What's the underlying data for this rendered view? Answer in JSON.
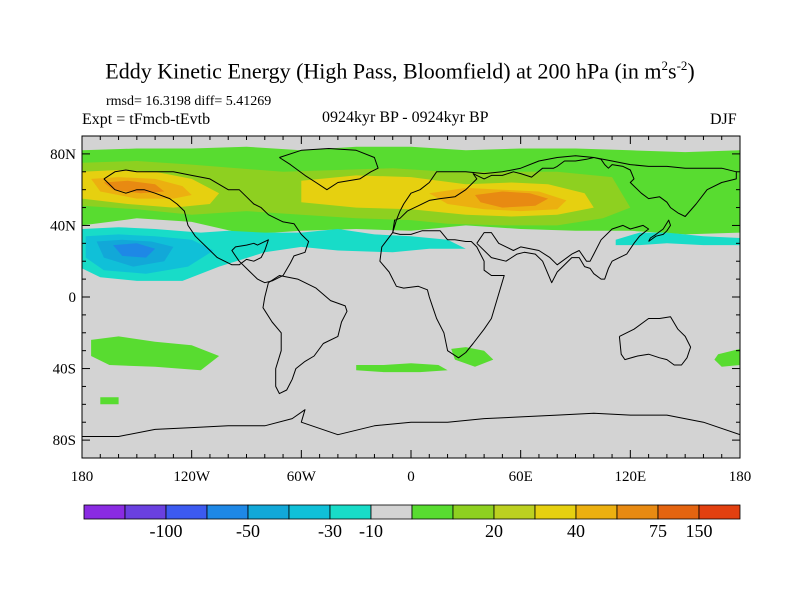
{
  "header": {
    "title_main": "Eddy Kinetic Energy (High Pass, Bloomfield) at 200 hPa (in m",
    "title_exp1": "2",
    "title_s": "s",
    "title_exp2": "-2",
    "title_close": ")",
    "stats": "rmsd= 16.3198 diff= 5.41269",
    "expt": "Expt = tFmcb-tEvtb",
    "period": "0924kyr BP - 0924kyr BP",
    "season": "DJF"
  },
  "chart_data": {
    "type": "heatmap",
    "title": "Eddy Kinetic Energy (High Pass, Bloomfield) at 200 hPa (in m2s-2)",
    "projection": "cylindrical-equidistant",
    "xlim": [
      -180,
      180
    ],
    "ylim": [
      -90,
      90
    ],
    "lon_ticks": [
      -180,
      -120,
      -60,
      0,
      60,
      120,
      180
    ],
    "lon_tick_labels": [
      "180",
      "120W",
      "60W",
      "0",
      "60E",
      "120E",
      "180"
    ],
    "lat_ticks": [
      80,
      40,
      0,
      -40,
      -80
    ],
    "lat_tick_labels": [
      "80N",
      "40N",
      "0",
      "40S",
      "80S"
    ],
    "background_color": "#d3d3d3",
    "colorbar": {
      "colors": [
        "#8a2be2",
        "#6a40e0",
        "#3c5af0",
        "#1e88e6",
        "#12a8d8",
        "#10c0d8",
        "#18dcc8",
        "#d3d3d3",
        "#58dc30",
        "#8ed020",
        "#bcd020",
        "#e6d010",
        "#ecb010",
        "#e88a12",
        "#e46410",
        "#e24010"
      ],
      "levels": [
        -100,
        -50,
        -30,
        -10,
        20,
        40,
        75,
        150
      ],
      "labels": [
        "-100",
        "-50",
        "-30",
        "-10",
        "20",
        "40",
        "75",
        "150"
      ]
    },
    "regions": [
      {
        "name": "nh-storm-track-green",
        "color": "#58dc30",
        "lon": [
          -180,
          -150,
          -120,
          -90,
          -60,
          -30,
          0,
          30,
          60,
          90,
          120,
          150,
          180,
          180,
          150,
          120,
          90,
          60,
          30,
          0,
          -30,
          -60,
          -90,
          -120,
          -150,
          -180
        ],
        "lat": [
          82,
          83,
          83,
          84,
          82,
          84,
          84,
          82,
          83,
          83,
          82,
          81,
          82,
          36,
          35,
          37,
          37,
          38,
          40,
          37,
          38,
          37,
          35,
          42,
          44,
          40
        ]
      },
      {
        "name": "nh-storm-track-yellowgreen",
        "color": "#8ed020",
        "lon": [
          -180,
          -150,
          -120,
          -95,
          -70,
          -40,
          -10,
          20,
          50,
          80,
          110,
          120,
          105,
          80,
          50,
          20,
          0,
          -30,
          -60,
          -90,
          -120,
          -150,
          -180
        ],
        "lat": [
          75,
          76,
          74,
          72,
          70,
          71,
          72,
          70,
          70,
          70,
          67,
          50,
          44,
          40,
          40,
          41,
          43,
          44,
          46,
          48,
          46,
          49,
          51
        ]
      },
      {
        "name": "nh-storm-track-yellow",
        "color": "#e6d010",
        "lon": [
          -180,
          -160,
          -140,
          -120,
          -105,
          -110,
          -130,
          -155,
          -180
        ],
        "lat": [
          70,
          71,
          70,
          66,
          58,
          52,
          50,
          52,
          55
        ]
      },
      {
        "name": "nh-storm-track-yellow-2",
        "color": "#e6d010",
        "lon": [
          -60,
          -30,
          0,
          30,
          55,
          75,
          95,
          100,
          80,
          55,
          30,
          0,
          -30,
          -60
        ],
        "lat": [
          65,
          68,
          67,
          63,
          64,
          63,
          58,
          50,
          46,
          45,
          46,
          49,
          50,
          53
        ]
      },
      {
        "name": "pacific-orange",
        "color": "#ecb010",
        "lon": [
          -175,
          -160,
          -140,
          -125,
          -120,
          -130,
          -150,
          -170
        ],
        "lat": [
          66,
          67,
          66,
          62,
          57,
          55,
          55,
          59
        ]
      },
      {
        "name": "eurasia-orange",
        "color": "#ecb010",
        "lon": [
          10,
          30,
          50,
          70,
          85,
          80,
          60,
          40,
          20
        ],
        "lat": [
          58,
          61,
          60,
          59,
          54,
          49,
          48,
          49,
          52
        ]
      },
      {
        "name": "eurasia-dark-orange",
        "color": "#e88a12",
        "lon": [
          35,
          50,
          65,
          75,
          68,
          50,
          38
        ],
        "lat": [
          57,
          59,
          58,
          55,
          51,
          50,
          53
        ]
      },
      {
        "name": "pacific-orange-core",
        "color": "#e88a12",
        "lon": [
          -168,
          -155,
          -140,
          -135,
          -148,
          -163
        ],
        "lat": [
          64,
          65,
          63,
          59,
          58,
          60
        ]
      },
      {
        "name": "subtropical-pacific-cyan",
        "color": "#18dcc8",
        "lon": [
          -180,
          -160,
          -140,
          -115,
          -100,
          -80,
          -60,
          -40,
          -20,
          0,
          20,
          30,
          10,
          -10,
          -40,
          -60,
          -80,
          -105,
          -125,
          -150,
          -170,
          -180
        ],
        "lat": [
          38,
          39,
          38,
          36,
          37,
          36,
          36,
          38,
          35,
          34,
          32,
          27,
          27,
          25,
          26,
          28,
          25,
          17,
          9,
          9,
          11,
          16
        ]
      },
      {
        "name": "subtropical-pacific-cyan-2",
        "color": "#10c0d8",
        "lon": [
          -178,
          -160,
          -140,
          -120,
          -108,
          -122,
          -145,
          -168,
          -178
        ],
        "lat": [
          34,
          35,
          34,
          32,
          26,
          17,
          13,
          15,
          22
        ]
      },
      {
        "name": "subtropical-pacific-blue",
        "color": "#12a8d8",
        "lon": [
          -172,
          -158,
          -142,
          -130,
          -135,
          -152,
          -168
        ],
        "lat": [
          31,
          32,
          31,
          28,
          20,
          17,
          22
        ]
      },
      {
        "name": "subtropical-pacific-deepblue",
        "color": "#1e88e6",
        "lon": [
          -163,
          -150,
          -140,
          -145,
          -158
        ],
        "lat": [
          29,
          30,
          27,
          22,
          23
        ]
      },
      {
        "name": "nw-pacific-cyan",
        "color": "#18dcc8",
        "lon": [
          112,
          125,
          140,
          160,
          180,
          180,
          160,
          140,
          125,
          112
        ],
        "lat": [
          32,
          36,
          36,
          34,
          33,
          29,
          29,
          30,
          29,
          29
        ]
      },
      {
        "name": "sh-band-pacific-green",
        "color": "#58dc30",
        "lon": [
          -175,
          -160,
          -140,
          -120,
          -105,
          -115,
          -140,
          -165,
          -175
        ],
        "lat": [
          -24,
          -22,
          -25,
          -27,
          -33,
          -41,
          -39,
          -38,
          -33
        ]
      },
      {
        "name": "sh-band-atlantic-green",
        "color": "#58dc30",
        "lon": [
          -30,
          -15,
          0,
          15,
          20,
          5,
          -15,
          -30
        ],
        "lat": [
          -38,
          -38,
          -37,
          -38,
          -41,
          -42,
          -42,
          -41
        ]
      },
      {
        "name": "sh-band-africa-green",
        "color": "#58dc30",
        "lon": [
          22,
          30,
          40,
          45,
          35,
          24
        ],
        "lat": [
          -29,
          -28,
          -30,
          -35,
          -39,
          -35
        ]
      },
      {
        "name": "sh-band-pacific-green-small",
        "color": "#58dc30",
        "lon": [
          -170,
          -160,
          -160,
          -170
        ],
        "lat": [
          -56,
          -56,
          -60,
          -60
        ]
      },
      {
        "name": "sh-band-australia-green",
        "color": "#58dc30",
        "lon": [
          168,
          180,
          180,
          170,
          166
        ],
        "lat": [
          -32,
          -29,
          -38,
          -39,
          -35
        ]
      }
    ],
    "coastlines": [
      {
        "name": "north-america",
        "lon": [
          -168,
          -162,
          -156,
          -150,
          -146,
          -140,
          -132,
          -128,
          -124,
          -122,
          -118,
          -112,
          -106,
          -98,
          -94,
          -90,
          -86,
          -82,
          -80,
          -78,
          -82,
          -84,
          -86,
          -90,
          -96,
          -98,
          -96,
          -94,
          -90,
          -88,
          -84,
          -82,
          -80,
          -76,
          -72,
          -70,
          -66,
          -64,
          -58,
          -56,
          -60,
          -64,
          -70,
          -74,
          -78,
          -82,
          -86,
          -90,
          -94,
          -100,
          -110,
          -120,
          -130,
          -140,
          -150,
          -156,
          -162,
          -168
        ],
        "lat": [
          66,
          60,
          58,
          60,
          60,
          58,
          55,
          52,
          48,
          40,
          34,
          28,
          22,
          18,
          18,
          21,
          20,
          22,
          26,
          32,
          30,
          29,
          30,
          29,
          28,
          26,
          23,
          20,
          16,
          14,
          10,
          9,
          8,
          9,
          11,
          12,
          19,
          23,
          25,
          31,
          35,
          41,
          42,
          44,
          46,
          50,
          52,
          56,
          60,
          60,
          66,
          68,
          70,
          70,
          70,
          71,
          70,
          66
        ]
      },
      {
        "name": "greenland",
        "lon": [
          -72,
          -60,
          -45,
          -30,
          -20,
          -18,
          -22,
          -28,
          -40,
          -46,
          -52,
          -58,
          -66,
          -72
        ],
        "lat": [
          78,
          82,
          83,
          82,
          78,
          72,
          70,
          66,
          64,
          60,
          64,
          68,
          74,
          78
        ]
      },
      {
        "name": "south-america",
        "lon": [
          -78,
          -72,
          -62,
          -52,
          -44,
          -36,
          -35,
          -38,
          -40,
          -48,
          -53,
          -58,
          -63,
          -65,
          -68,
          -72,
          -74,
          -74,
          -71,
          -71,
          -76,
          -81,
          -80,
          -78
        ],
        "lat": [
          8,
          12,
          10,
          5,
          -2,
          -5,
          -8,
          -14,
          -22,
          -26,
          -33,
          -36,
          -40,
          -46,
          -52,
          -54,
          -50,
          -40,
          -30,
          -20,
          -14,
          -6,
          0,
          8
        ]
      },
      {
        "name": "eurasia-africa-coast",
        "lon": [
          -10,
          -9,
          -6,
          -2,
          4,
          10,
          16,
          24,
          30,
          36,
          34,
          36,
          40,
          44,
          50,
          56,
          60,
          66,
          72,
          78,
          80,
          84,
          90,
          96,
          100,
          104,
          106,
          108,
          110,
          116,
          120,
          122,
          120,
          126,
          130,
          136,
          140,
          142,
          146,
          150,
          156,
          162,
          170,
          178,
          178,
          170,
          160,
          150,
          140,
          130,
          120,
          110,
          100,
          90,
          80,
          70,
          60,
          50,
          40,
          30,
          20,
          14,
          10,
          5,
          0,
          -4,
          -6,
          -8,
          -10
        ],
        "lat": [
          36,
          43,
          44,
          48,
          51,
          54,
          55,
          56,
          60,
          66,
          69,
          68,
          66,
          68,
          68,
          70,
          69,
          67,
          72,
          72,
          73,
          76,
          76,
          77,
          78,
          77,
          74,
          72,
          74,
          73,
          71,
          66,
          64,
          58,
          55,
          56,
          53,
          50,
          47,
          45,
          52,
          60,
          64,
          66,
          70,
          72,
          72,
          72,
          73,
          73,
          74,
          76,
          78,
          79,
          78,
          76,
          72,
          70,
          69,
          70,
          70,
          70,
          64,
          60,
          58,
          52,
          48,
          43,
          36
        ]
      },
      {
        "name": "africa",
        "lon": [
          -10,
          -16,
          -17,
          -12,
          -8,
          -4,
          4,
          9,
          10,
          12,
          14,
          18,
          20,
          26,
          30,
          34,
          40,
          44,
          51,
          48,
          44,
          40,
          40,
          36,
          33,
          30,
          24,
          20,
          16,
          12,
          10,
          6,
          0,
          -6,
          -10
        ],
        "lat": [
          36,
          28,
          20,
          14,
          6,
          5,
          6,
          4,
          0,
          -6,
          -12,
          -20,
          -30,
          -34,
          -31,
          -26,
          -18,
          -12,
          12,
          12,
          12,
          15,
          20,
          28,
          31,
          31,
          32,
          32,
          37,
          37,
          37,
          37,
          35,
          35,
          36
        ]
      },
      {
        "name": "asia-south",
        "lon": [
          36,
          44,
          52,
          58,
          62,
          68,
          72,
          77,
          80,
          82,
          88,
          92,
          95,
          98,
          100,
          104,
          106,
          108,
          110,
          114,
          118,
          122,
          125,
          130,
          127,
          120,
          116,
          110,
          104,
          100,
          98,
          96,
          92,
          88,
          80,
          76,
          70,
          60,
          56,
          48,
          44,
          40,
          36
        ],
        "lat": [
          30,
          22,
          20,
          24,
          25,
          24,
          20,
          8,
          14,
          16,
          22,
          22,
          17,
          16,
          13,
          10,
          10,
          16,
          20,
          22,
          24,
          30,
          34,
          38,
          40,
          38,
          40,
          38,
          32,
          24,
          20,
          20,
          26,
          24,
          18,
          22,
          26,
          28,
          26,
          30,
          36,
          36,
          30
        ]
      },
      {
        "name": "japan",
        "lon": [
          130,
          134,
          138,
          140,
          142,
          141,
          138,
          134,
          131,
          130
        ],
        "lat": [
          31,
          34,
          35,
          37,
          40,
          43,
          38,
          35,
          33,
          31
        ]
      },
      {
        "name": "australia",
        "lon": [
          114,
          122,
          130,
          136,
          142,
          146,
          150,
          153,
          151,
          148,
          144,
          140,
          136,
          130,
          124,
          117,
          115,
          114
        ],
        "lat": [
          -22,
          -18,
          -12,
          -12,
          -11,
          -18,
          -22,
          -28,
          -34,
          -38,
          -38,
          -35,
          -34,
          -32,
          -33,
          -35,
          -32,
          -22
        ]
      },
      {
        "name": "antarctica",
        "lon": [
          -180,
          -160,
          -140,
          -120,
          -100,
          -80,
          -65,
          -58,
          -60,
          -40,
          -20,
          0,
          20,
          40,
          60,
          80,
          100,
          120,
          140,
          160,
          180
        ],
        "lat": [
          -78,
          -78,
          -74,
          -73,
          -72,
          -72,
          -68,
          -63,
          -70,
          -77,
          -72,
          -70,
          -70,
          -68,
          -67,
          -66,
          -65,
          -66,
          -66,
          -70,
          -77
        ]
      }
    ]
  }
}
